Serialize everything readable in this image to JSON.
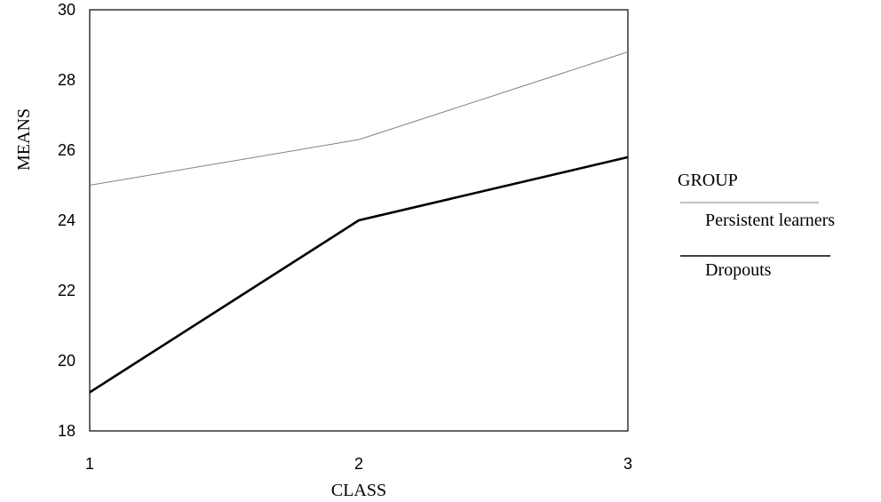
{
  "chart_data": {
    "type": "line",
    "xlabel": "CLASS",
    "ylabel": "MEANS",
    "x": [
      1,
      2,
      3
    ],
    "xlim": [
      1,
      3
    ],
    "ylim": [
      18,
      30
    ],
    "yticks": [
      18,
      20,
      22,
      24,
      26,
      28,
      30
    ],
    "xticks": [
      1,
      2,
      3
    ],
    "grid": false,
    "legend": {
      "title": "GROUP",
      "position": "right"
    },
    "series": [
      {
        "name": "Persistent learners",
        "values": [
          25.0,
          26.3,
          28.8
        ],
        "color": "#808080"
      },
      {
        "name": "Dropouts",
        "values": [
          19.1,
          24.0,
          25.8
        ],
        "color": "#000000"
      }
    ]
  }
}
